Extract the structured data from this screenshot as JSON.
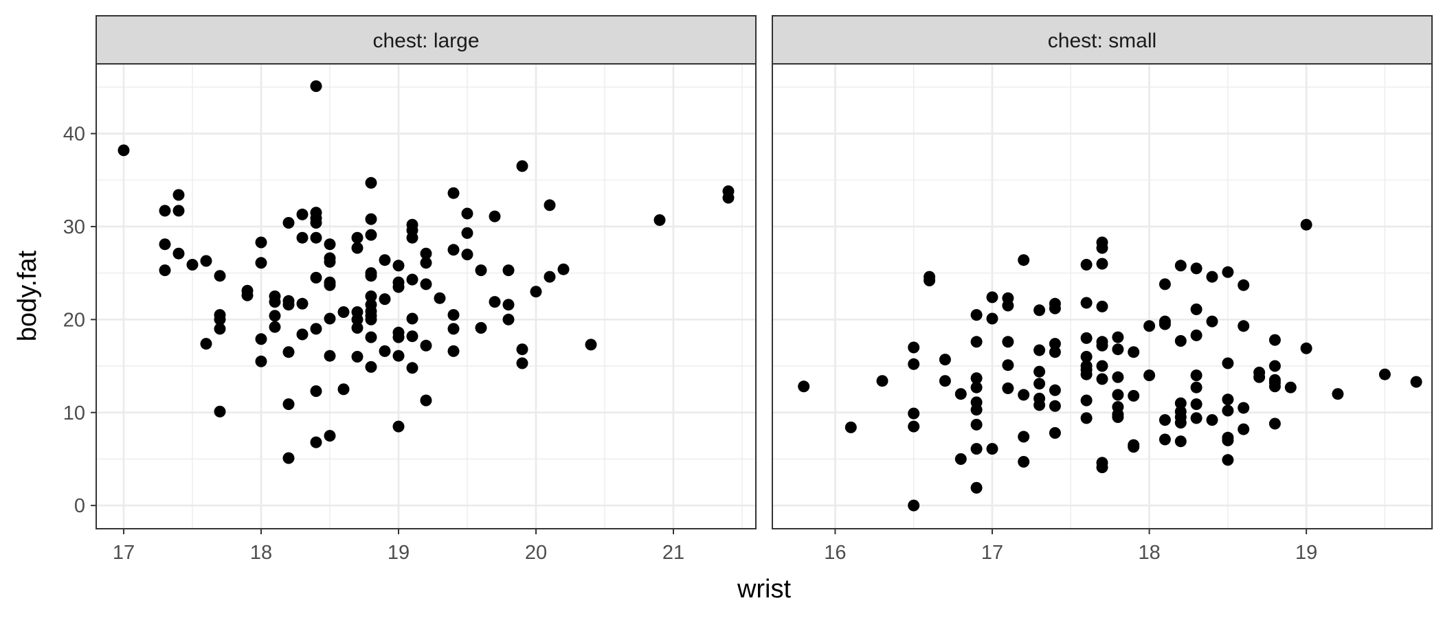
{
  "chart_data": {
    "type": "scatter",
    "xlabel": "wrist",
    "ylabel": "body.fat",
    "ylim": [
      -2.5,
      47.5
    ],
    "y_ticks": [
      0,
      10,
      20,
      30,
      40
    ],
    "grid": true,
    "point_color": "#000000",
    "panels": [
      {
        "title": "chest: large",
        "xlim": [
          16.8,
          21.6
        ],
        "x_ticks": [
          17,
          18,
          19,
          20,
          21
        ],
        "points": [
          [
            17.0,
            38.2
          ],
          [
            17.3,
            31.7
          ],
          [
            17.4,
            31.7
          ],
          [
            17.4,
            33.4
          ],
          [
            17.3,
            28.1
          ],
          [
            17.4,
            27.1
          ],
          [
            17.3,
            25.3
          ],
          [
            17.5,
            25.9
          ],
          [
            17.6,
            26.3
          ],
          [
            17.7,
            24.7
          ],
          [
            17.7,
            20.5
          ],
          [
            17.7,
            20.0
          ],
          [
            17.7,
            19.0
          ],
          [
            17.6,
            17.4
          ],
          [
            17.7,
            10.1
          ],
          [
            17.9,
            23.1
          ],
          [
            17.9,
            22.6
          ],
          [
            18.0,
            28.3
          ],
          [
            18.0,
            26.1
          ],
          [
            18.0,
            17.9
          ],
          [
            18.0,
            15.5
          ],
          [
            18.1,
            22.5
          ],
          [
            18.1,
            21.9
          ],
          [
            18.1,
            20.4
          ],
          [
            18.1,
            19.2
          ],
          [
            18.2,
            22.0
          ],
          [
            18.2,
            21.6
          ],
          [
            18.2,
            16.5
          ],
          [
            18.2,
            10.9
          ],
          [
            18.2,
            5.1
          ],
          [
            18.2,
            30.4
          ],
          [
            18.3,
            31.3
          ],
          [
            18.3,
            28.8
          ],
          [
            18.3,
            21.7
          ],
          [
            18.3,
            18.4
          ],
          [
            18.4,
            31.5
          ],
          [
            18.4,
            30.9
          ],
          [
            18.4,
            30.4
          ],
          [
            18.4,
            28.8
          ],
          [
            18.4,
            24.5
          ],
          [
            18.4,
            19.0
          ],
          [
            18.4,
            12.3
          ],
          [
            18.4,
            6.8
          ],
          [
            18.4,
            45.1
          ],
          [
            18.5,
            28.1
          ],
          [
            18.5,
            26.6
          ],
          [
            18.5,
            26.2
          ],
          [
            18.5,
            24.0
          ],
          [
            18.5,
            23.7
          ],
          [
            18.5,
            20.1
          ],
          [
            18.5,
            16.1
          ],
          [
            18.5,
            7.5
          ],
          [
            18.6,
            20.8
          ],
          [
            18.6,
            12.5
          ],
          [
            18.7,
            28.8
          ],
          [
            18.7,
            27.7
          ],
          [
            18.7,
            20.8
          ],
          [
            18.7,
            20.0
          ],
          [
            18.7,
            19.1
          ],
          [
            18.7,
            16.0
          ],
          [
            18.8,
            34.7
          ],
          [
            18.8,
            30.8
          ],
          [
            18.8,
            29.1
          ],
          [
            18.8,
            25.0
          ],
          [
            18.8,
            24.7
          ],
          [
            18.8,
            22.5
          ],
          [
            18.8,
            21.6
          ],
          [
            18.8,
            20.9
          ],
          [
            18.8,
            20.4
          ],
          [
            18.8,
            20.0
          ],
          [
            18.8,
            18.1
          ],
          [
            18.8,
            14.9
          ],
          [
            18.9,
            26.4
          ],
          [
            18.9,
            22.2
          ],
          [
            18.9,
            16.6
          ],
          [
            19.0,
            25.8
          ],
          [
            19.0,
            24.0
          ],
          [
            19.0,
            23.5
          ],
          [
            19.0,
            18.6
          ],
          [
            19.0,
            18.1
          ],
          [
            19.0,
            16.1
          ],
          [
            19.0,
            8.5
          ],
          [
            19.1,
            30.2
          ],
          [
            19.1,
            29.6
          ],
          [
            19.1,
            28.8
          ],
          [
            19.1,
            24.3
          ],
          [
            19.1,
            20.1
          ],
          [
            19.1,
            18.2
          ],
          [
            19.1,
            14.8
          ],
          [
            19.2,
            27.1
          ],
          [
            19.2,
            26.1
          ],
          [
            19.2,
            23.8
          ],
          [
            19.2,
            17.2
          ],
          [
            19.2,
            11.3
          ],
          [
            19.3,
            22.3
          ],
          [
            19.4,
            33.6
          ],
          [
            19.4,
            27.5
          ],
          [
            19.4,
            20.5
          ],
          [
            19.4,
            19.0
          ],
          [
            19.4,
            16.6
          ],
          [
            19.5,
            31.4
          ],
          [
            19.5,
            29.3
          ],
          [
            19.5,
            27.0
          ],
          [
            19.6,
            25.3
          ],
          [
            19.6,
            19.1
          ],
          [
            19.7,
            31.1
          ],
          [
            19.7,
            21.9
          ],
          [
            19.8,
            25.3
          ],
          [
            19.8,
            21.6
          ],
          [
            19.8,
            20.0
          ],
          [
            19.9,
            36.5
          ],
          [
            19.9,
            16.8
          ],
          [
            19.9,
            15.3
          ],
          [
            20.0,
            23.0
          ],
          [
            20.1,
            32.3
          ],
          [
            20.1,
            24.6
          ],
          [
            20.2,
            25.4
          ],
          [
            20.4,
            17.3
          ],
          [
            20.9,
            30.7
          ],
          [
            21.4,
            33.8
          ],
          [
            21.4,
            33.1
          ]
        ]
      },
      {
        "title": "chest: small",
        "xlim": [
          15.6,
          19.8
        ],
        "x_ticks": [
          16,
          17,
          18,
          19
        ],
        "points": [
          [
            15.8,
            12.8
          ],
          [
            16.1,
            8.4
          ],
          [
            16.3,
            13.4
          ],
          [
            16.5,
            17.0
          ],
          [
            16.5,
            15.2
          ],
          [
            16.5,
            9.9
          ],
          [
            16.5,
            8.5
          ],
          [
            16.5,
            0.0
          ],
          [
            16.6,
            24.6
          ],
          [
            16.6,
            24.2
          ],
          [
            16.7,
            15.7
          ],
          [
            16.7,
            13.4
          ],
          [
            16.8,
            12.0
          ],
          [
            16.8,
            5.0
          ],
          [
            16.9,
            20.5
          ],
          [
            16.9,
            17.6
          ],
          [
            16.9,
            13.7
          ],
          [
            16.9,
            12.7
          ],
          [
            16.9,
            11.1
          ],
          [
            16.9,
            10.3
          ],
          [
            16.9,
            8.7
          ],
          [
            16.9,
            6.1
          ],
          [
            16.9,
            1.9
          ],
          [
            17.0,
            22.4
          ],
          [
            17.0,
            20.1
          ],
          [
            17.0,
            6.1
          ],
          [
            17.1,
            22.3
          ],
          [
            17.1,
            21.5
          ],
          [
            17.1,
            17.6
          ],
          [
            17.1,
            15.1
          ],
          [
            17.1,
            12.6
          ],
          [
            17.2,
            26.4
          ],
          [
            17.2,
            11.9
          ],
          [
            17.2,
            7.4
          ],
          [
            17.2,
            4.7
          ],
          [
            17.3,
            21.0
          ],
          [
            17.3,
            16.7
          ],
          [
            17.3,
            14.4
          ],
          [
            17.3,
            13.1
          ],
          [
            17.3,
            11.5
          ],
          [
            17.3,
            10.8
          ],
          [
            17.4,
            21.7
          ],
          [
            17.4,
            21.2
          ],
          [
            17.4,
            17.4
          ],
          [
            17.4,
            16.5
          ],
          [
            17.4,
            12.4
          ],
          [
            17.4,
            10.7
          ],
          [
            17.4,
            7.8
          ],
          [
            17.6,
            25.9
          ],
          [
            17.6,
            21.8
          ],
          [
            17.6,
            18.0
          ],
          [
            17.6,
            16.0
          ],
          [
            17.6,
            15.0
          ],
          [
            17.6,
            14.6
          ],
          [
            17.6,
            14.1
          ],
          [
            17.6,
            11.3
          ],
          [
            17.6,
            9.4
          ],
          [
            17.7,
            28.3
          ],
          [
            17.7,
            27.7
          ],
          [
            17.7,
            26.0
          ],
          [
            17.7,
            21.4
          ],
          [
            17.7,
            17.6
          ],
          [
            17.7,
            17.2
          ],
          [
            17.7,
            15.0
          ],
          [
            17.7,
            13.6
          ],
          [
            17.7,
            4.6
          ],
          [
            17.7,
            4.1
          ],
          [
            17.8,
            18.1
          ],
          [
            17.8,
            16.8
          ],
          [
            17.8,
            13.8
          ],
          [
            17.8,
            11.9
          ],
          [
            17.8,
            10.6
          ],
          [
            17.8,
            9.8
          ],
          [
            17.8,
            9.5
          ],
          [
            17.9,
            16.5
          ],
          [
            17.9,
            11.8
          ],
          [
            17.9,
            6.5
          ],
          [
            17.9,
            6.3
          ],
          [
            18.0,
            19.3
          ],
          [
            18.0,
            14.0
          ],
          [
            18.1,
            23.8
          ],
          [
            18.1,
            19.8
          ],
          [
            18.1,
            19.5
          ],
          [
            18.1,
            9.2
          ],
          [
            18.1,
            7.1
          ],
          [
            18.2,
            25.8
          ],
          [
            18.2,
            17.7
          ],
          [
            18.2,
            11.0
          ],
          [
            18.2,
            10.1
          ],
          [
            18.2,
            9.5
          ],
          [
            18.2,
            8.9
          ],
          [
            18.2,
            6.9
          ],
          [
            18.3,
            25.5
          ],
          [
            18.3,
            21.1
          ],
          [
            18.3,
            18.3
          ],
          [
            18.3,
            14.0
          ],
          [
            18.3,
            12.7
          ],
          [
            18.3,
            10.9
          ],
          [
            18.3,
            9.4
          ],
          [
            18.4,
            24.6
          ],
          [
            18.4,
            19.8
          ],
          [
            18.4,
            9.2
          ],
          [
            18.5,
            25.1
          ],
          [
            18.5,
            15.3
          ],
          [
            18.5,
            11.4
          ],
          [
            18.5,
            10.2
          ],
          [
            18.5,
            7.3
          ],
          [
            18.5,
            7.0
          ],
          [
            18.5,
            4.9
          ],
          [
            18.6,
            23.7
          ],
          [
            18.6,
            19.3
          ],
          [
            18.6,
            10.5
          ],
          [
            18.6,
            8.2
          ],
          [
            18.7,
            14.3
          ],
          [
            18.7,
            13.8
          ],
          [
            18.8,
            17.8
          ],
          [
            18.8,
            15.0
          ],
          [
            18.8,
            13.5
          ],
          [
            18.8,
            13.2
          ],
          [
            18.8,
            12.8
          ],
          [
            18.8,
            8.8
          ],
          [
            18.9,
            12.7
          ],
          [
            19.0,
            30.2
          ],
          [
            19.0,
            16.9
          ],
          [
            19.2,
            12.0
          ],
          [
            19.5,
            14.1
          ],
          [
            19.7,
            13.3
          ]
        ]
      }
    ]
  }
}
